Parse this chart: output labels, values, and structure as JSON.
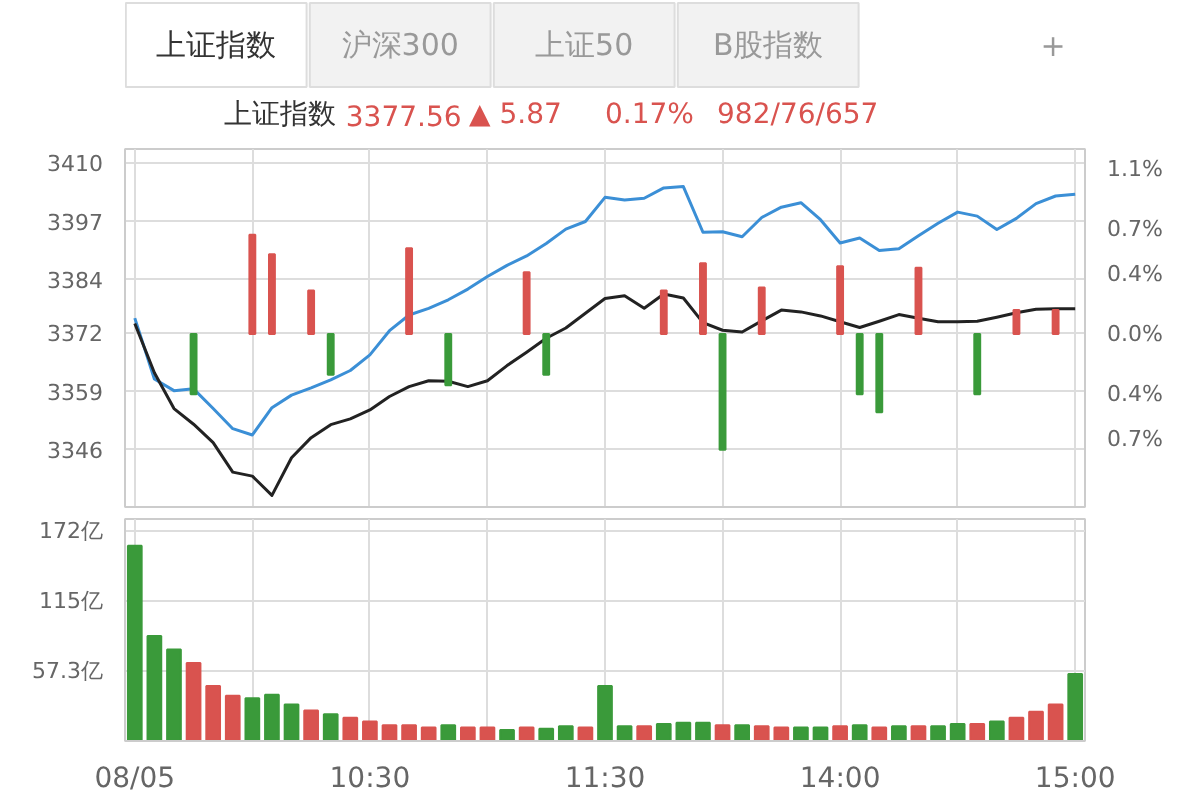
{
  "chart_data": [
    {
      "type": "other",
      "annotations": [
        "上证指数",
        "沪深300",
        "上证50",
        "B股指数",
        "+"
      ]
    },
    {
      "type": "line",
      "title": "上证指数",
      "annotations": [
        "3377.56",
        "▲ 5.87",
        "0.17%",
        "982/76/657"
      ],
      "categories": [
        null,
        null,
        null,
        null,
        null,
        null,
        null,
        null,
        null,
        null,
        null,
        null,
        null,
        null,
        null,
        null,
        null,
        null,
        null,
        null,
        null,
        null,
        null,
        null,
        null,
        null,
        null,
        null,
        null,
        null,
        null,
        null,
        null,
        null,
        null,
        null,
        null,
        null,
        null,
        null,
        null,
        null,
        null,
        null,
        null,
        null,
        null,
        null,
        null
      ],
      "ylim": [
        3333,
        3413
      ],
      "yticks": [
        3346,
        3359,
        3372,
        3384,
        3397,
        3410
      ],
      "y2lim": [
        -1.15,
        1.23
      ],
      "y2ticks": [
        {
          "value": -0.7,
          "label": "0.7%"
        },
        {
          "value": -0.4,
          "label": "0.4%"
        },
        {
          "value": 0,
          "label": "0.0%"
        },
        {
          "value": 0.4,
          "label": "0.4%"
        },
        {
          "value": 0.7,
          "label": "0.7%"
        },
        {
          "value": 1.1,
          "label": "1.1%"
        }
      ],
      "tick_labels": "y",
      "grid": true,
      "series": [
        {
          "color": "#3b8fd6",
          "values": [
            3375.2,
            3361.6,
            3359,
            3359.4,
            3355,
            3350.5,
            3349.1,
            3355.2,
            3358,
            3359.6,
            3361.4,
            3363.5,
            3367,
            3372.4,
            3375.9,
            3377.4,
            3379.3,
            3381.7,
            3384.5,
            3387,
            3389.1,
            3391.9,
            3395.1,
            3396.8,
            3402.2,
            3401.6,
            3402,
            3404.3,
            3404.6,
            3394.4,
            3394.5,
            3393.4,
            3397.7,
            3400,
            3401,
            3397.2,
            3392,
            3393.1,
            3390.3,
            3390.7,
            3393.6,
            3396.4,
            3398.9,
            3398,
            3395,
            3397.5,
            3400.8,
            3402.5,
            3402.9
          ]
        },
        {
          "color": "#222222",
          "values": [
            3374,
            3363,
            3355,
            3351.5,
            3347.4,
            3340.8,
            3339.9,
            3335.6,
            3344,
            3348.5,
            3351.4,
            3352.7,
            3354.7,
            3357.7,
            3359.9,
            3361.2,
            3361.1,
            3359.9,
            3361.2,
            3364.6,
            3367.6,
            3370.7,
            3373,
            3376.3,
            3379.6,
            3380.2,
            3377.4,
            3380.6,
            3379.7,
            3374.2,
            3372.5,
            3372.1,
            3374.6,
            3377,
            3376.6,
            3375.7,
            3374.4,
            3373.1,
            3374.5,
            3376,
            3375.2,
            3374.4,
            3374.4,
            3374.5,
            3375.4,
            3376.4,
            3377.2,
            3377.3,
            3377.3
          ]
        },
        {
          "type": "bar",
          "axis": "y2",
          "values": [
            null,
            null,
            null,
            -0.4,
            null,
            null,
            0.66,
            0.53,
            null,
            0.29,
            -0.27,
            null,
            null,
            null,
            0.57,
            null,
            -0.34,
            null,
            null,
            null,
            0.41,
            -0.27,
            null,
            null,
            null,
            null,
            null,
            0.29,
            null,
            0.47,
            -0.77,
            null,
            0.31,
            null,
            null,
            null,
            0.45,
            -0.4,
            -0.52,
            null,
            0.44,
            null,
            null,
            -0.4,
            null,
            0.16,
            null,
            0.16,
            null
          ],
          "colors": [
            null,
            null,
            null,
            "#3a9a3a",
            null,
            null,
            "#d9534f",
            "#d9534f",
            null,
            "#d9534f",
            "#3a9a3a",
            null,
            null,
            null,
            "#d9534f",
            null,
            "#3a9a3a",
            null,
            null,
            null,
            "#d9534f",
            "#3a9a3a",
            null,
            null,
            null,
            null,
            null,
            "#d9534f",
            null,
            "#d9534f",
            "#3a9a3a",
            null,
            "#d9534f",
            null,
            null,
            null,
            "#d9534f",
            "#3a9a3a",
            "#3a9a3a",
            null,
            "#d9534f",
            null,
            null,
            "#3a9a3a",
            null,
            "#d9534f",
            null,
            "#d9534f",
            null
          ]
        }
      ]
    },
    {
      "type": "bar",
      "categories": [
        "08/05",
        null,
        null,
        null,
        null,
        null,
        null,
        null,
        null,
        null,
        null,
        null,
        "10:30",
        null,
        null,
        null,
        null,
        null,
        null,
        null,
        null,
        null,
        null,
        null,
        "11:30",
        null,
        null,
        null,
        null,
        null,
        null,
        null,
        null,
        null,
        null,
        null,
        "14:00",
        null,
        null,
        null,
        null,
        null,
        null,
        null,
        null,
        null,
        null,
        null,
        "15:00"
      ],
      "ylim": [
        0,
        182
      ],
      "yticks": [
        {
          "value": 57.3,
          "label": "57.3亿"
        },
        {
          "value": 115,
          "label": "115亿"
        },
        {
          "value": 172,
          "label": "172亿"
        }
      ],
      "grid": true,
      "values": [
        160,
        86,
        75,
        64,
        45,
        37,
        35,
        38,
        30,
        25,
        22,
        19,
        16,
        13,
        13,
        11,
        13,
        11,
        11,
        9,
        11,
        10,
        12,
        11,
        45,
        12,
        12,
        14,
        15,
        15,
        13,
        13,
        12,
        11,
        11,
        11,
        12,
        13,
        11,
        12,
        12,
        12,
        14,
        14,
        16,
        19,
        24,
        30,
        55
      ],
      "colors": [
        "#3a9a3a",
        "#3a9a3a",
        "#3a9a3a",
        "#d9534f",
        "#d9534f",
        "#d9534f",
        "#3a9a3a",
        "#3a9a3a",
        "#3a9a3a",
        "#d9534f",
        "#3a9a3a",
        "#d9534f",
        "#d9534f",
        "#d9534f",
        "#d9534f",
        "#d9534f",
        "#3a9a3a",
        "#d9534f",
        "#d9534f",
        "#3a9a3a",
        "#d9534f",
        "#3a9a3a",
        "#3a9a3a",
        "#d9534f",
        "#3a9a3a",
        "#3a9a3a",
        "#d9534f",
        "#3a9a3a",
        "#3a9a3a",
        "#3a9a3a",
        "#d9534f",
        "#3a9a3a",
        "#d9534f",
        "#d9534f",
        "#3a9a3a",
        "#3a9a3a",
        "#d9534f",
        "#3a9a3a",
        "#d9534f",
        "#3a9a3a",
        "#d9534f",
        "#3a9a3a",
        "#3a9a3a",
        "#d9534f",
        "#3a9a3a",
        "#d9534f",
        "#d9534f",
        "#d9534f",
        "#3a9a3a"
      ]
    }
  ]
}
